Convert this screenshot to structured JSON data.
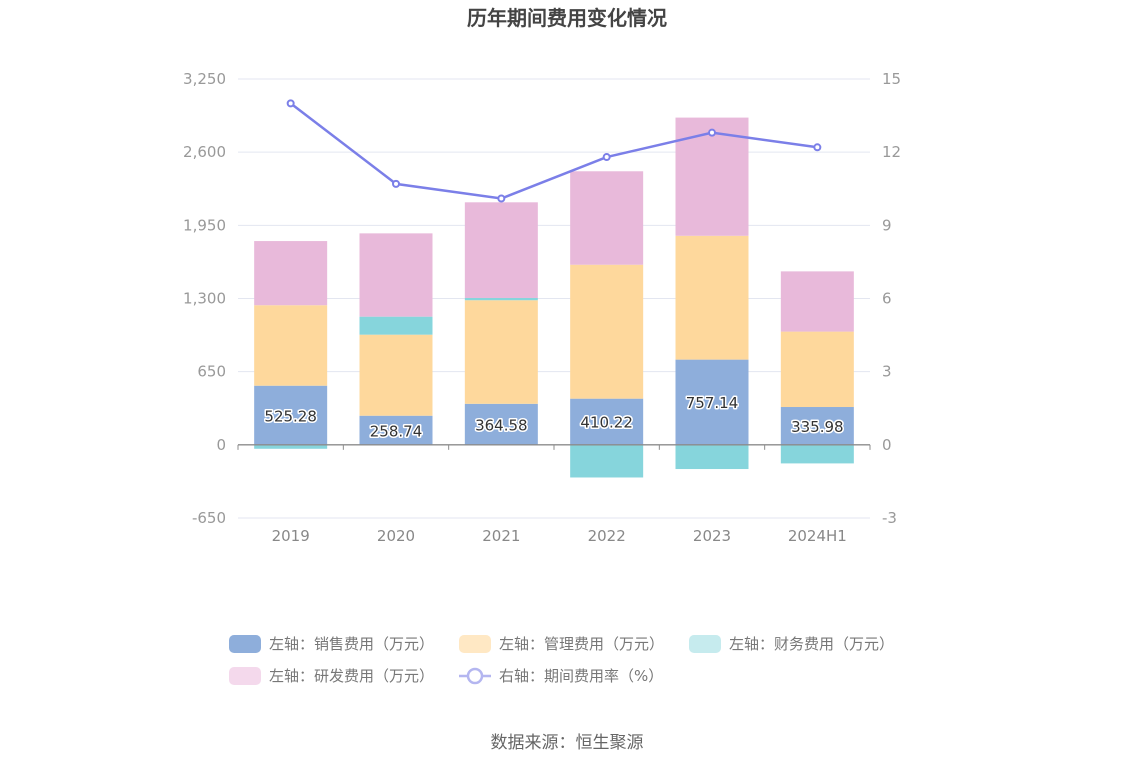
{
  "chart_data": {
    "type": "bar",
    "stacked": true,
    "title": "历年期间费用变化情况",
    "source": "数据来源：恒生聚源",
    "categories": [
      "2019",
      "2020",
      "2021",
      "2022",
      "2023",
      "2024H1"
    ],
    "left_axis": {
      "ticks": [
        "3,250",
        "2,600",
        "1,950",
        "1,300",
        "650",
        "0",
        "-650"
      ],
      "range": [
        -650,
        3250
      ]
    },
    "right_axis": {
      "ticks": [
        "15",
        "12",
        "9",
        "6",
        "3",
        "0",
        "-3"
      ],
      "range": [
        -3,
        15
      ]
    },
    "series": [
      {
        "name": "左轴：销售费用（万元）",
        "color": "#8eaedb",
        "values": [
          525.28,
          258.74,
          364.58,
          410.22,
          757.14,
          335.98
        ],
        "labels": [
          "525.28",
          "258.74",
          "364.58",
          "410.22",
          "757.14",
          "335.98"
        ]
      },
      {
        "name": "左轴：管理费用（万元）",
        "color": "#fed89c",
        "values": [
          715,
          720,
          920,
          1190,
          1100,
          670
        ]
      },
      {
        "name": "左轴：财务费用（万元）",
        "color": "#86d5dc",
        "values": [
          -35,
          160,
          20,
          -290,
          -215,
          -165
        ]
      },
      {
        "name": "左轴：研发费用（万元）",
        "color": "#e8b9da",
        "values": [
          570,
          740,
          850,
          830,
          1050,
          535
        ]
      },
      {
        "name": "右轴：期间费用率（%）",
        "color": "#7b7fe8",
        "type": "line",
        "axis": "right",
        "values": [
          14.0,
          10.7,
          10.1,
          11.8,
          12.8,
          12.2
        ]
      }
    ]
  }
}
